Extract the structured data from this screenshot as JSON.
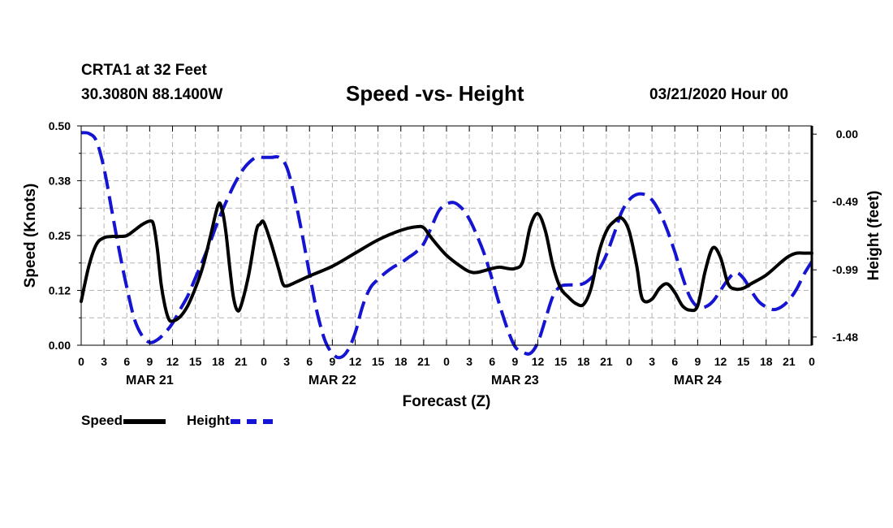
{
  "header": {
    "station": "CRTA1 at 32 Feet",
    "coordinates": "30.3080N 88.1400W",
    "title": "Speed -vs- Height",
    "datetime": "03/21/2020 Hour 00"
  },
  "colors": {
    "speed": "#000000",
    "height": "#1414d2",
    "grid": "#b4b4b4"
  },
  "chart_data": {
    "type": "line",
    "title": "Speed -vs- Height",
    "xlabel": "Forecast (Z)",
    "ylabel": "Speed (Knots)",
    "y2label": "Height (feet)",
    "x_range_hours": [
      0,
      96
    ],
    "ylim": [
      0,
      0.5
    ],
    "y2lim": [
      -1.54,
      0.06
    ],
    "y_ticks": [
      "0.00",
      "0.12",
      "0.25",
      "0.38",
      "0.50"
    ],
    "y2_ticks": [
      {
        "value": 0.0,
        "label": "0.00"
      },
      {
        "value": -0.49,
        "label": "-0.49"
      },
      {
        "value": -0.99,
        "label": "-0.99"
      },
      {
        "value": -1.48,
        "label": "-1.48"
      }
    ],
    "x_tick_labels": [
      "0",
      "3",
      "6",
      "9",
      "12",
      "15",
      "18",
      "21",
      "0",
      "3",
      "6",
      "9",
      "12",
      "15",
      "18",
      "21",
      "0",
      "3",
      "6",
      "9",
      "12",
      "15",
      "18",
      "21",
      "0",
      "3",
      "6",
      "9",
      "12",
      "15",
      "18",
      "21",
      "0"
    ],
    "day_labels": [
      {
        "hour": 9,
        "label": "MAR 21"
      },
      {
        "hour": 33,
        "label": "MAR 22"
      },
      {
        "hour": 57,
        "label": "MAR 23"
      },
      {
        "hour": 81,
        "label": "MAR 24"
      }
    ],
    "legend": [
      "Speed",
      "Height"
    ],
    "series": [
      {
        "name": "Speed",
        "style": "solid",
        "axis": "left",
        "points": [
          [
            0,
            0.1
          ],
          [
            1,
            0.18
          ],
          [
            2,
            0.23
          ],
          [
            3,
            0.245
          ],
          [
            4,
            0.248
          ],
          [
            5,
            0.248
          ],
          [
            6,
            0.25
          ],
          [
            7,
            0.262
          ],
          [
            8,
            0.275
          ],
          [
            9,
            0.283
          ],
          [
            9.5,
            0.275
          ],
          [
            10,
            0.22
          ],
          [
            10.5,
            0.14
          ],
          [
            11,
            0.09
          ],
          [
            11.5,
            0.06
          ],
          [
            12,
            0.055
          ],
          [
            13,
            0.065
          ],
          [
            14,
            0.09
          ],
          [
            15,
            0.13
          ],
          [
            16,
            0.18
          ],
          [
            17,
            0.25
          ],
          [
            18,
            0.32
          ],
          [
            18.5,
            0.31
          ],
          [
            19,
            0.26
          ],
          [
            19.5,
            0.18
          ],
          [
            20,
            0.11
          ],
          [
            20.5,
            0.08
          ],
          [
            21,
            0.09
          ],
          [
            22,
            0.16
          ],
          [
            23,
            0.26
          ],
          [
            23.5,
            0.276
          ],
          [
            24,
            0.28
          ],
          [
            25,
            0.23
          ],
          [
            26,
            0.17
          ],
          [
            26.5,
            0.14
          ],
          [
            27,
            0.135
          ],
          [
            28,
            0.142
          ],
          [
            30,
            0.158
          ],
          [
            33,
            0.18
          ],
          [
            36,
            0.21
          ],
          [
            39,
            0.24
          ],
          [
            42,
            0.262
          ],
          [
            44,
            0.27
          ],
          [
            45,
            0.268
          ],
          [
            46,
            0.245
          ],
          [
            48,
            0.205
          ],
          [
            50,
            0.178
          ],
          [
            51,
            0.168
          ],
          [
            52,
            0.166
          ],
          [
            54,
            0.175
          ],
          [
            55,
            0.178
          ],
          [
            56,
            0.175
          ],
          [
            57,
            0.175
          ],
          [
            58,
            0.19
          ],
          [
            59,
            0.27
          ],
          [
            60,
            0.3
          ],
          [
            61,
            0.26
          ],
          [
            62,
            0.18
          ],
          [
            63,
            0.13
          ],
          [
            64,
            0.11
          ],
          [
            65,
            0.095
          ],
          [
            66,
            0.093
          ],
          [
            67,
            0.13
          ],
          [
            68,
            0.21
          ],
          [
            69,
            0.26
          ],
          [
            70,
            0.282
          ],
          [
            71,
            0.29
          ],
          [
            72,
            0.26
          ],
          [
            73,
            0.18
          ],
          [
            73.5,
            0.12
          ],
          [
            74,
            0.1
          ],
          [
            75,
            0.105
          ],
          [
            76,
            0.13
          ],
          [
            77,
            0.14
          ],
          [
            78,
            0.12
          ],
          [
            79,
            0.09
          ],
          [
            80,
            0.08
          ],
          [
            81,
            0.09
          ],
          [
            82,
            0.17
          ],
          [
            83,
            0.222
          ],
          [
            84,
            0.2
          ],
          [
            85,
            0.14
          ],
          [
            86,
            0.128
          ],
          [
            87,
            0.13
          ],
          [
            88,
            0.14
          ],
          [
            90,
            0.16
          ],
          [
            92,
            0.19
          ],
          [
            93,
            0.203
          ],
          [
            94,
            0.21
          ],
          [
            95,
            0.21
          ],
          [
            96,
            0.21
          ]
        ]
      },
      {
        "name": "Height",
        "style": "dashed",
        "axis": "right",
        "points": [
          [
            0,
            0.01
          ],
          [
            1,
            0.005
          ],
          [
            2,
            -0.05
          ],
          [
            3,
            -0.25
          ],
          [
            4,
            -0.55
          ],
          [
            5,
            -0.85
          ],
          [
            6,
            -1.12
          ],
          [
            7,
            -1.35
          ],
          [
            8,
            -1.47
          ],
          [
            9,
            -1.52
          ],
          [
            10,
            -1.5
          ],
          [
            11,
            -1.45
          ],
          [
            12,
            -1.38
          ],
          [
            13,
            -1.28
          ],
          [
            14,
            -1.18
          ],
          [
            15,
            -1.05
          ],
          [
            16,
            -0.92
          ],
          [
            17,
            -0.78
          ],
          [
            18,
            -0.63
          ],
          [
            19,
            -0.5
          ],
          [
            20,
            -0.38
          ],
          [
            21,
            -0.28
          ],
          [
            22,
            -0.21
          ],
          [
            23,
            -0.17
          ],
          [
            24,
            -0.17
          ],
          [
            25,
            -0.17
          ],
          [
            26,
            -0.17
          ],
          [
            27,
            -0.24
          ],
          [
            28,
            -0.45
          ],
          [
            29,
            -0.72
          ],
          [
            30,
            -1.02
          ],
          [
            31,
            -1.3
          ],
          [
            32,
            -1.5
          ],
          [
            33,
            -1.6
          ],
          [
            34,
            -1.63
          ],
          [
            35,
            -1.58
          ],
          [
            36,
            -1.45
          ],
          [
            37,
            -1.25
          ],
          [
            38,
            -1.12
          ],
          [
            39,
            -1.06
          ],
          [
            40,
            -1.01
          ],
          [
            41,
            -0.97
          ],
          [
            42,
            -0.94
          ],
          [
            43,
            -0.9
          ],
          [
            44,
            -0.86
          ],
          [
            45,
            -0.8
          ],
          [
            46,
            -0.68
          ],
          [
            47,
            -0.56
          ],
          [
            48,
            -0.51
          ],
          [
            49,
            -0.5
          ],
          [
            50,
            -0.54
          ],
          [
            51,
            -0.62
          ],
          [
            52,
            -0.74
          ],
          [
            53,
            -0.88
          ],
          [
            54,
            -1.06
          ],
          [
            55,
            -1.25
          ],
          [
            56,
            -1.42
          ],
          [
            57,
            -1.55
          ],
          [
            58,
            -1.59
          ],
          [
            59,
            -1.6
          ],
          [
            60,
            -1.52
          ],
          [
            61,
            -1.35
          ],
          [
            62,
            -1.18
          ],
          [
            63,
            -1.11
          ],
          [
            64,
            -1.1
          ],
          [
            65,
            -1.1
          ],
          [
            66,
            -1.09
          ],
          [
            67,
            -1.05
          ],
          [
            68,
            -0.99
          ],
          [
            69,
            -0.88
          ],
          [
            70,
            -0.73
          ],
          [
            71,
            -0.57
          ],
          [
            72,
            -0.48
          ],
          [
            73,
            -0.44
          ],
          [
            74,
            -0.44
          ],
          [
            75,
            -0.48
          ],
          [
            76,
            -0.57
          ],
          [
            77,
            -0.7
          ],
          [
            78,
            -0.86
          ],
          [
            79,
            -1.04
          ],
          [
            80,
            -1.19
          ],
          [
            81,
            -1.26
          ],
          [
            82,
            -1.26
          ],
          [
            83,
            -1.22
          ],
          [
            84,
            -1.14
          ],
          [
            85,
            -1.06
          ],
          [
            86,
            -1.01
          ],
          [
            87,
            -1.05
          ],
          [
            88,
            -1.14
          ],
          [
            89,
            -1.22
          ],
          [
            90,
            -1.26
          ],
          [
            91,
            -1.28
          ],
          [
            92,
            -1.26
          ],
          [
            93,
            -1.21
          ],
          [
            94,
            -1.13
          ],
          [
            95,
            -1.02
          ],
          [
            96,
            -0.93
          ]
        ]
      }
    ]
  }
}
